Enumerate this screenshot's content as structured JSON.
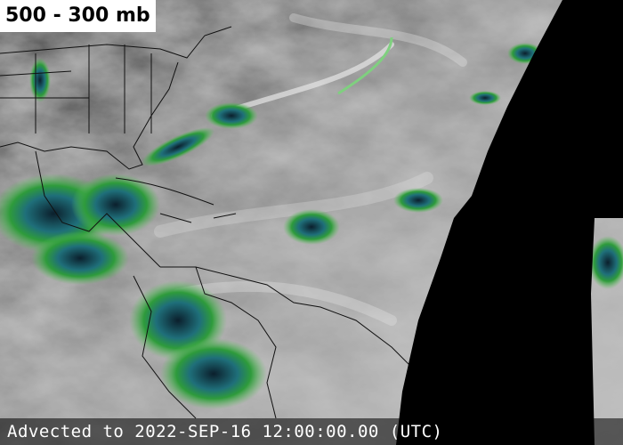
{
  "label": "500 - 300 mb",
  "caption": "Advected to 2022-SEP-16 12:00:00.00 (UTC)"
}
